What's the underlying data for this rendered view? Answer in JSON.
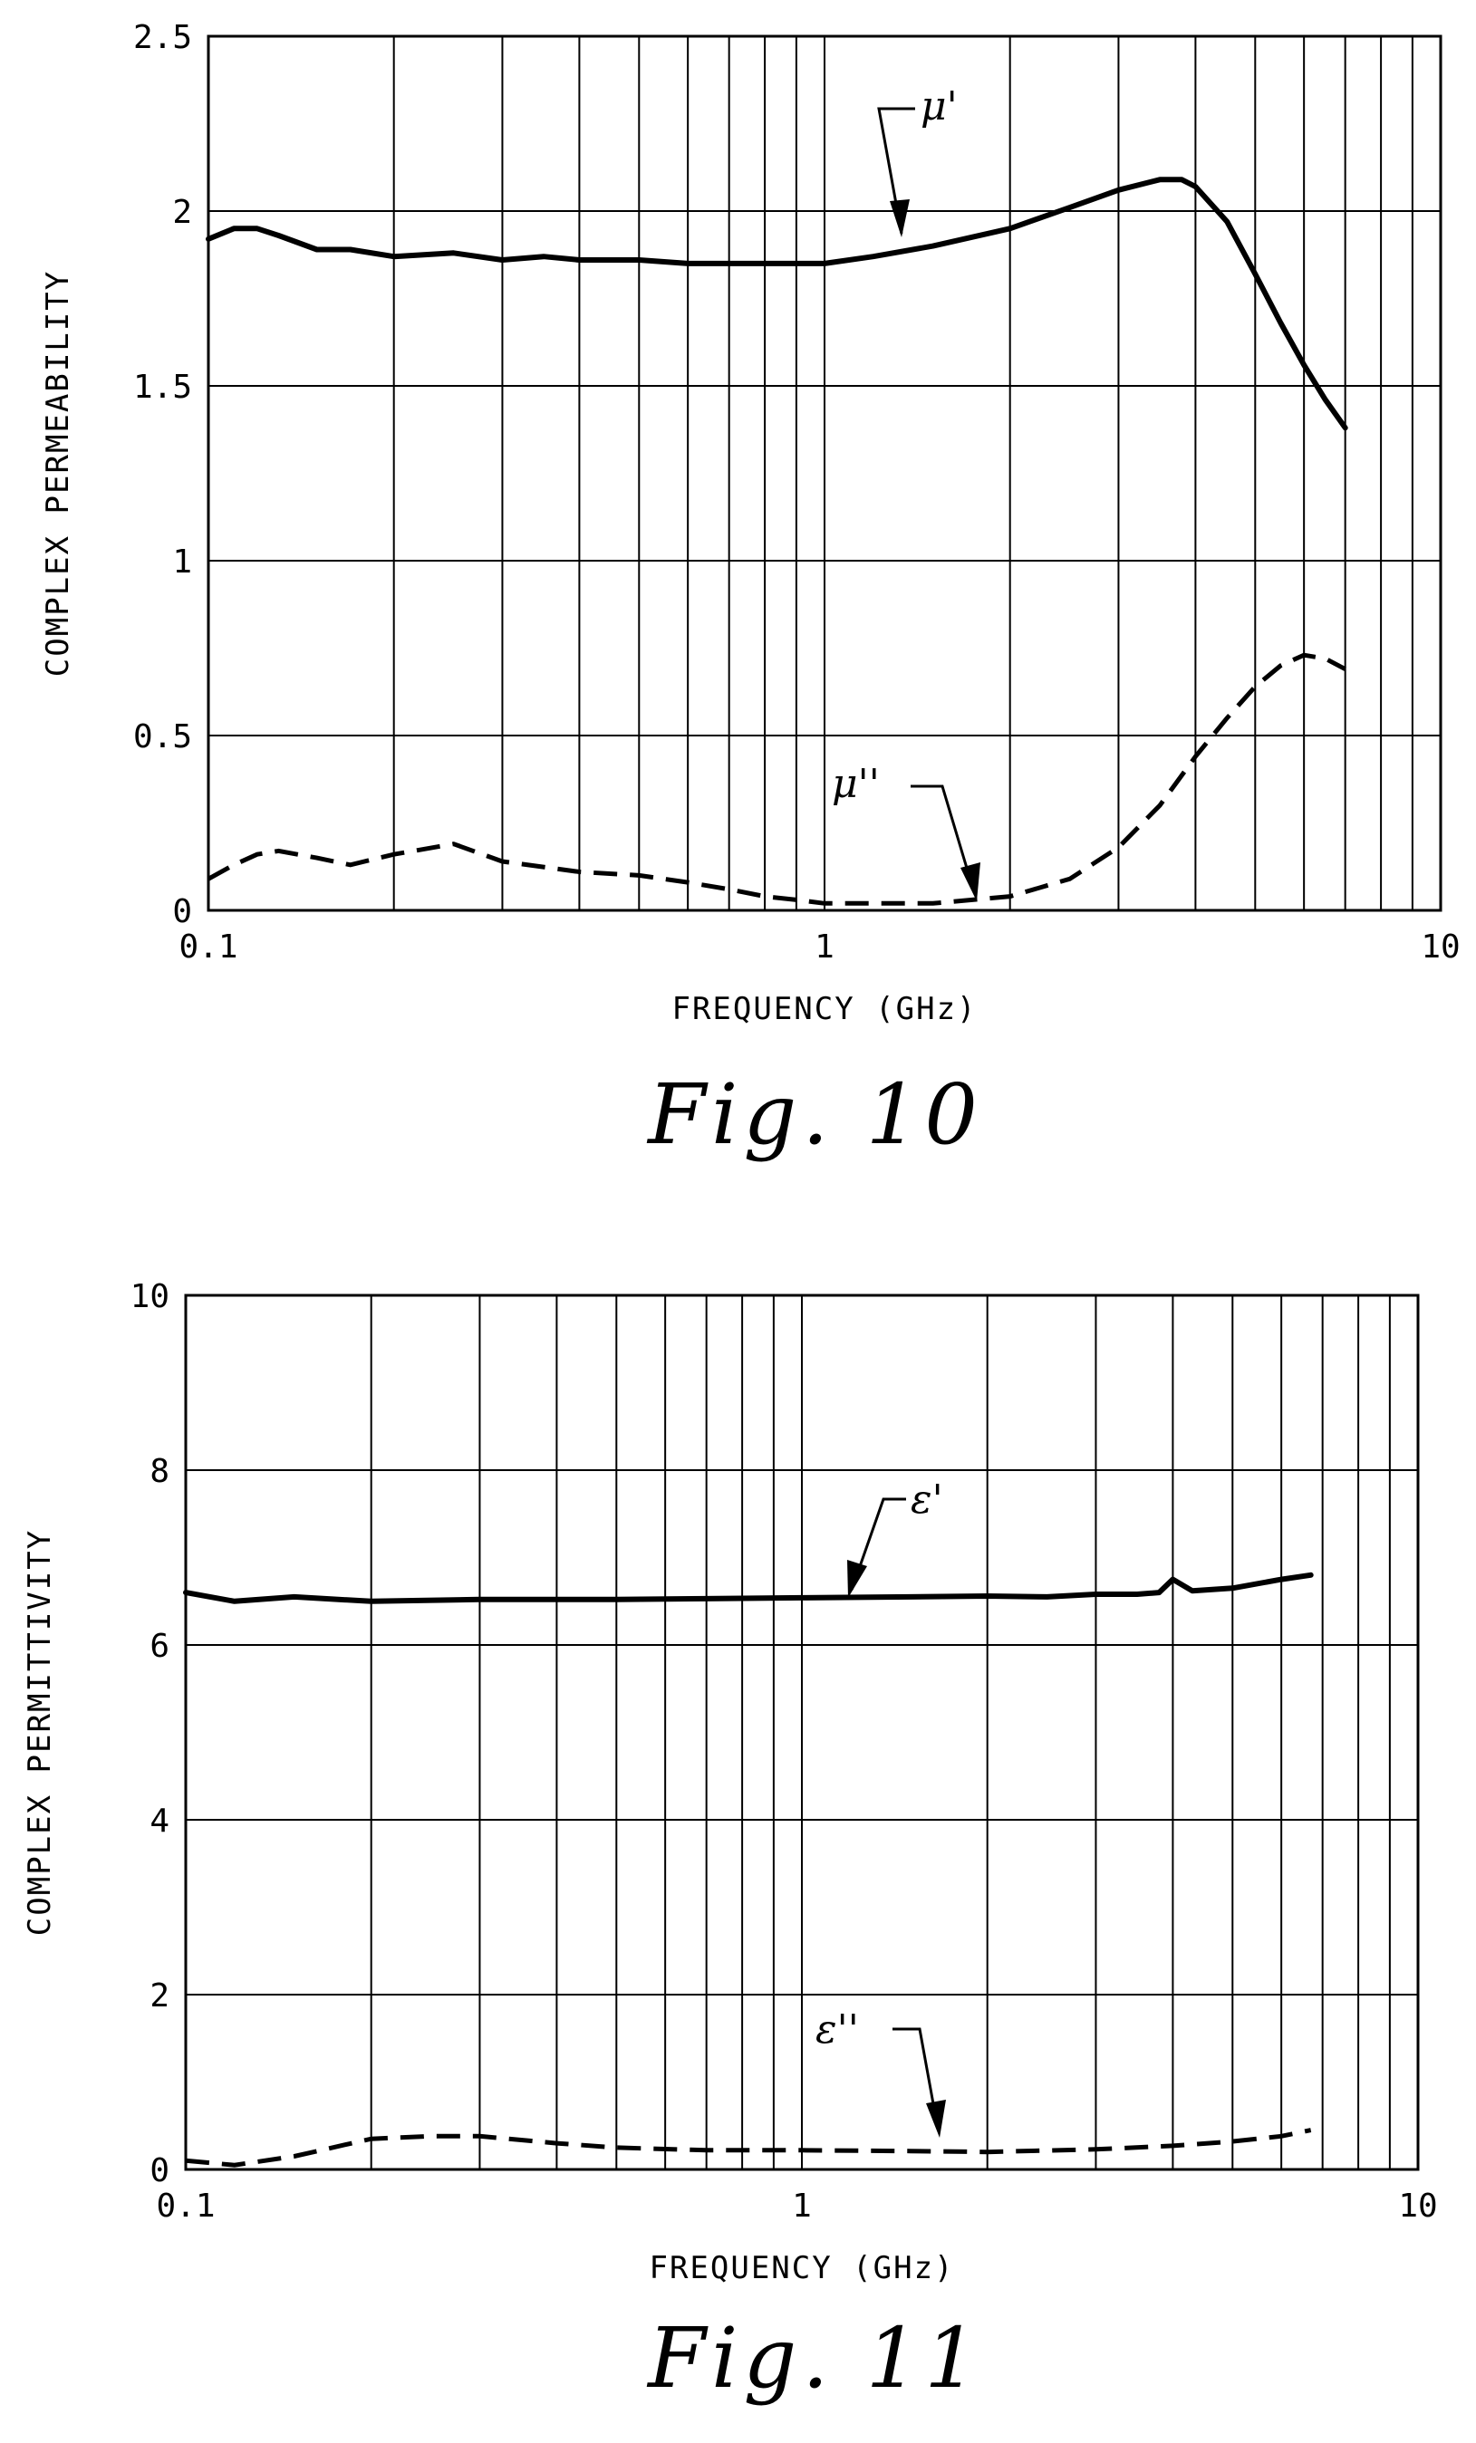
{
  "chart_data": [
    {
      "type": "line",
      "figure_label": "Fig. 10",
      "xlabel": "FREQUENCY (GHz)",
      "ylabel": "COMPLEX PERMEABILITY",
      "x_scale": "log",
      "xlim": [
        0.1,
        10
      ],
      "ylim": [
        0,
        2.5
      ],
      "x_ticks": [
        "0.1",
        "1",
        "10"
      ],
      "y_ticks": [
        "0",
        "0.5",
        "1",
        "1.5",
        "2",
        "2.5"
      ],
      "y_tick_values": [
        0,
        0.5,
        1,
        1.5,
        2,
        2.5
      ],
      "grid": true,
      "series": [
        {
          "name": "μ'",
          "style": "solid",
          "x": [
            0.1,
            0.11,
            0.12,
            0.13,
            0.15,
            0.17,
            0.2,
            0.25,
            0.3,
            0.35,
            0.4,
            0.5,
            0.6,
            0.7,
            0.8,
            0.9,
            1.0,
            1.2,
            1.5,
            2.0,
            2.5,
            3.0,
            3.5,
            3.8,
            4.0,
            4.5,
            5.0,
            5.5,
            6.0,
            6.5,
            7.0
          ],
          "values": [
            1.92,
            1.95,
            1.95,
            1.93,
            1.89,
            1.89,
            1.87,
            1.88,
            1.86,
            1.87,
            1.86,
            1.86,
            1.85,
            1.85,
            1.85,
            1.85,
            1.85,
            1.87,
            1.9,
            1.95,
            2.01,
            2.06,
            2.09,
            2.09,
            2.07,
            1.97,
            1.82,
            1.68,
            1.56,
            1.46,
            1.38
          ]
        },
        {
          "name": "μ''",
          "style": "dashed",
          "x": [
            0.1,
            0.11,
            0.12,
            0.13,
            0.15,
            0.17,
            0.2,
            0.25,
            0.3,
            0.4,
            0.5,
            0.6,
            0.7,
            0.8,
            0.9,
            1.0,
            1.2,
            1.5,
            2.0,
            2.5,
            3.0,
            3.5,
            4.0,
            4.5,
            5.0,
            5.5,
            6.0,
            6.5,
            7.0
          ],
          "values": [
            0.09,
            0.13,
            0.16,
            0.17,
            0.15,
            0.13,
            0.16,
            0.19,
            0.14,
            0.11,
            0.1,
            0.08,
            0.06,
            0.04,
            0.03,
            0.02,
            0.02,
            0.02,
            0.04,
            0.09,
            0.18,
            0.3,
            0.44,
            0.55,
            0.64,
            0.7,
            0.73,
            0.72,
            0.69
          ]
        }
      ]
    },
    {
      "type": "line",
      "figure_label": "Fig. 11",
      "xlabel": "FREQUENCY (GHz)",
      "ylabel": "COMPLEX PERMITTIVITY",
      "x_scale": "log",
      "xlim": [
        0.1,
        10
      ],
      "ylim": [
        0,
        10
      ],
      "x_ticks": [
        "0.1",
        "1",
        "10"
      ],
      "y_ticks": [
        "0",
        "2",
        "4",
        "6",
        "8",
        "10"
      ],
      "y_tick_values": [
        0,
        2,
        4,
        6,
        8,
        10
      ],
      "grid": true,
      "series": [
        {
          "name": "ε'",
          "style": "solid",
          "x": [
            0.1,
            0.12,
            0.15,
            0.2,
            0.3,
            0.5,
            0.7,
            1.0,
            1.5,
            2.0,
            2.5,
            3.0,
            3.5,
            3.8,
            4.0,
            4.3,
            5.0,
            6.0,
            6.7
          ],
          "values": [
            6.6,
            6.5,
            6.55,
            6.5,
            6.52,
            6.52,
            6.53,
            6.54,
            6.55,
            6.56,
            6.55,
            6.58,
            6.58,
            6.6,
            6.75,
            6.62,
            6.65,
            6.75,
            6.8
          ]
        },
        {
          "name": "ε''",
          "style": "dashed",
          "x": [
            0.1,
            0.12,
            0.15,
            0.2,
            0.25,
            0.3,
            0.4,
            0.5,
            0.7,
            1.0,
            1.5,
            2.0,
            3.0,
            4.0,
            5.0,
            6.0,
            6.7
          ],
          "values": [
            0.1,
            0.05,
            0.15,
            0.35,
            0.38,
            0.38,
            0.3,
            0.25,
            0.22,
            0.22,
            0.21,
            0.2,
            0.23,
            0.27,
            0.32,
            0.38,
            0.45
          ]
        }
      ]
    }
  ]
}
